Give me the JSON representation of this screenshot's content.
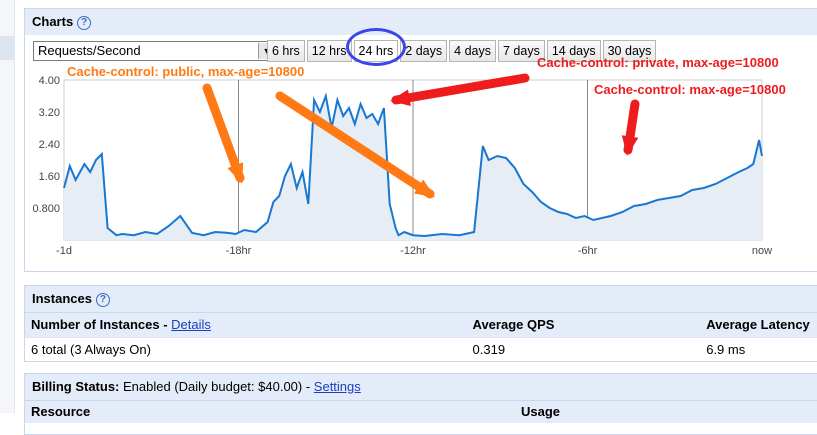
{
  "charts": {
    "title": "Charts",
    "help_icon": "?",
    "metric_select": {
      "value": "Requests/Second",
      "arrow": "▼"
    },
    "ranges": [
      "6 hrs",
      "12 hrs",
      "24 hrs",
      "2 days",
      "4 days",
      "7 days",
      "14 days",
      "30 days"
    ],
    "active_range": "24 hrs"
  },
  "annotations": {
    "public": "Cache-control: public, max-age=10800",
    "private": "Cache-control: private, max-age=10800",
    "plain": "Cache-control: max-age=10800",
    "colors": {
      "public": "#ff7a14",
      "private": "#ee1c1c",
      "plain": "#ee1c1c",
      "circle": "#3b45e8"
    }
  },
  "chart_data": {
    "type": "area",
    "x_tick_labels": [
      "-1d",
      "-18hr",
      "-12hr",
      "-6hr",
      "now"
    ],
    "x_ticks_hours": [
      -24,
      -18,
      -12,
      -6,
      0
    ],
    "y_tick_labels": [
      "4.00",
      "3.20",
      "2.40",
      "1.60",
      "0.800"
    ],
    "y_ticks": [
      4.0,
      3.2,
      2.4,
      1.6,
      0.8
    ],
    "ylim": [
      0,
      4.0
    ],
    "xlim": [
      -24,
      0
    ],
    "colors": {
      "line": "#1877d2",
      "fill": "#e6edf5",
      "grid": "#888888"
    },
    "x_hours": [
      -24.0,
      -23.8,
      -23.6,
      -23.3,
      -23.1,
      -22.9,
      -22.7,
      -22.5,
      -22.2,
      -22.0,
      -21.6,
      -21.2,
      -20.8,
      -20.4,
      -20.0,
      -19.6,
      -19.2,
      -18.8,
      -18.4,
      -18.1,
      -17.8,
      -17.4,
      -17.0,
      -16.8,
      -16.6,
      -16.4,
      -16.2,
      -16.0,
      -15.8,
      -15.6,
      -15.4,
      -15.2,
      -15.0,
      -14.8,
      -14.6,
      -14.4,
      -14.2,
      -14.0,
      -13.8,
      -13.6,
      -13.4,
      -13.2,
      -13.0,
      -12.8,
      -12.6,
      -12.5,
      -12.3,
      -12.0,
      -11.6,
      -11.0,
      -10.4,
      -9.9,
      -9.6,
      -9.4,
      -9.1,
      -8.8,
      -8.5,
      -8.2,
      -7.9,
      -7.6,
      -7.3,
      -7.0,
      -6.7,
      -6.4,
      -6.1,
      -5.8,
      -5.5,
      -5.2,
      -4.8,
      -4.4,
      -4.0,
      -3.6,
      -3.2,
      -2.8,
      -2.4,
      -2.0,
      -1.6,
      -1.2,
      -0.8,
      -0.5,
      -0.3,
      -0.1,
      0.0
    ],
    "values": [
      1.3,
      1.85,
      1.5,
      1.9,
      1.7,
      2.0,
      2.15,
      0.3,
      0.12,
      0.15,
      0.12,
      0.2,
      0.15,
      0.35,
      0.6,
      0.18,
      0.12,
      0.2,
      0.18,
      0.15,
      0.25,
      0.2,
      0.45,
      0.95,
      1.1,
      1.6,
      1.9,
      1.3,
      1.7,
      0.9,
      3.5,
      3.2,
      3.6,
      2.8,
      3.5,
      3.1,
      3.3,
      2.9,
      3.4,
      3.05,
      3.15,
      2.9,
      3.3,
      0.9,
      0.3,
      0.12,
      0.2,
      0.12,
      0.1,
      0.15,
      0.12,
      0.2,
      2.35,
      2.0,
      2.1,
      2.05,
      1.8,
      1.4,
      1.2,
      0.95,
      0.8,
      0.7,
      0.65,
      0.55,
      0.6,
      0.5,
      0.55,
      0.6,
      0.7,
      0.85,
      0.9,
      1.0,
      1.05,
      1.1,
      1.25,
      1.3,
      1.4,
      1.55,
      1.7,
      1.8,
      1.9,
      2.5,
      2.1
    ]
  },
  "instances": {
    "title": "Instances",
    "headers": {
      "instances": "Number of Instances - ",
      "details_link": "Details",
      "qps": "Average QPS",
      "latency": "Average Latency"
    },
    "row": {
      "instances": "6 total (3 Always On)",
      "qps": "0.319",
      "latency": "6.9 ms"
    }
  },
  "billing": {
    "label": "Billing Status:",
    "status": " Enabled (Daily budget: $40.00) - ",
    "settings_link": "Settings",
    "headers": {
      "resource": "Resource",
      "usage": "Usage"
    }
  }
}
